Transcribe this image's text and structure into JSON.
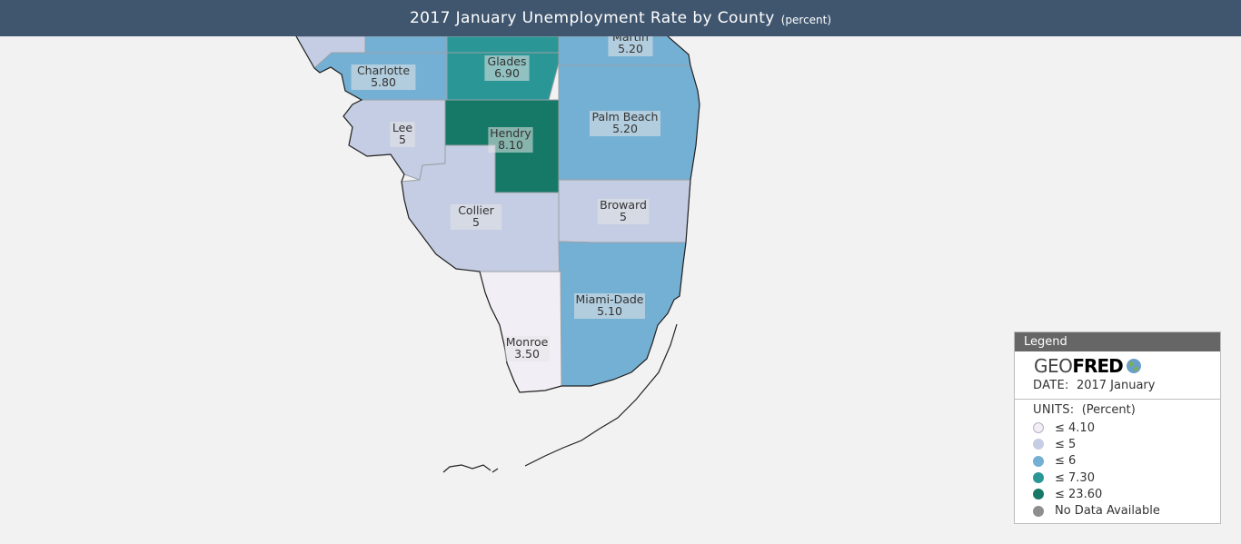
{
  "header": {
    "title": "2017 January Unemployment Rate by County",
    "units": "(percent)"
  },
  "colors": {
    "header_bg": "#40566f",
    "bin_1": "#f2eef5",
    "bin_2": "#c4cde3",
    "bin_3": "#74b0d4",
    "bin_4": "#2a9696",
    "bin_5": "#167866",
    "no_data": "#8e8e8e"
  },
  "map": {
    "counties": [
      {
        "name": "Charlotte",
        "value": "5.80",
        "bin": 3
      },
      {
        "name": "Glades",
        "value": "6.90",
        "bin": 4
      },
      {
        "name": "Martin",
        "value": "5.20",
        "bin": 3
      },
      {
        "name": "Lee",
        "value": "5",
        "bin": 2
      },
      {
        "name": "Hendry",
        "value": "8.10",
        "bin": 5
      },
      {
        "name": "Palm Beach",
        "value": "5.20",
        "bin": 3
      },
      {
        "name": "Collier",
        "value": "5",
        "bin": 2
      },
      {
        "name": "Broward",
        "value": "5",
        "bin": 2
      },
      {
        "name": "Miami-Dade",
        "value": "5.10",
        "bin": 3
      },
      {
        "name": "Monroe",
        "value": "3.50",
        "bin": 1
      }
    ]
  },
  "legend": {
    "header": "Legend",
    "logo_geo": "GEO",
    "logo_fred": "FRED",
    "date_key": "DATE:",
    "date_value": "2017 January",
    "units_key": "UNITS:",
    "units_value": "(Percent)",
    "bins": [
      {
        "label": "≤ 4.10",
        "color": "#f2eef5"
      },
      {
        "label": "≤ 5",
        "color": "#c4cde3"
      },
      {
        "label": "≤ 6",
        "color": "#74b0d4"
      },
      {
        "label": "≤ 7.30",
        "color": "#2a9696"
      },
      {
        "label": "≤ 23.60",
        "color": "#167866"
      },
      {
        "label": "No Data Available",
        "color": "#8e8e8e"
      }
    ]
  }
}
